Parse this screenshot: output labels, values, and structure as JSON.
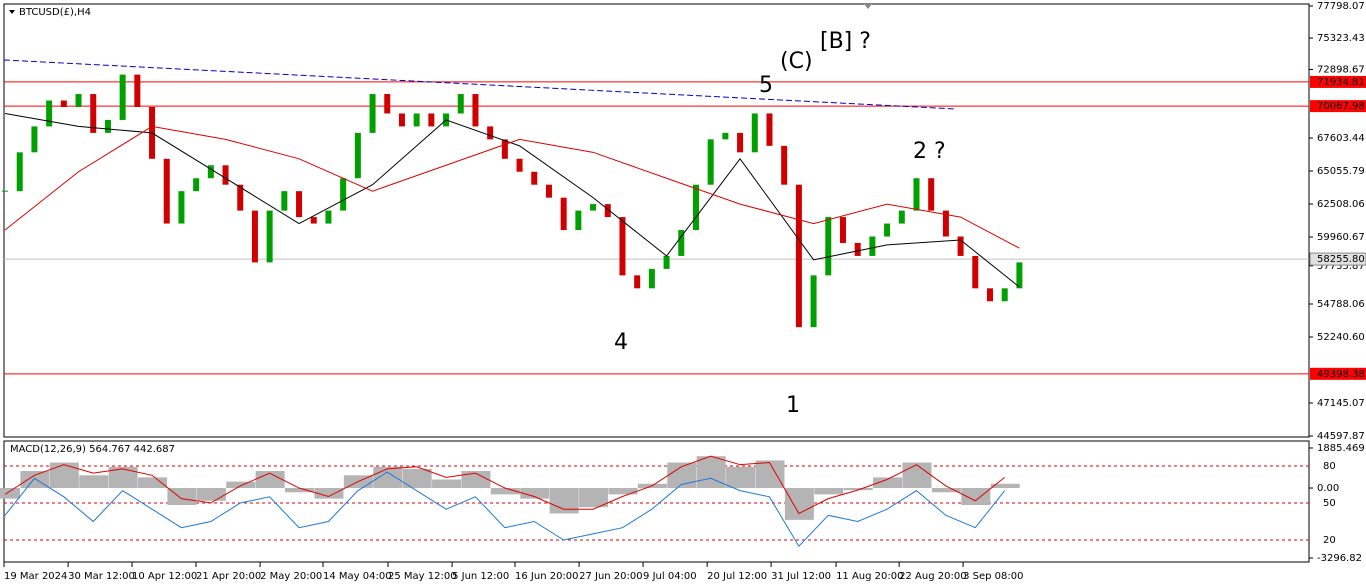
{
  "chart_data": {
    "type": "candlestick",
    "title": "BTCUSD(£),H4",
    "xlim": [
      -0.07,
      88.7
    ],
    "ylim": [
      44520,
      77952
    ],
    "up_color": "#00a000",
    "down_color": "#d00000",
    "closes": [
      63500,
      66500,
      68500,
      70500,
      70000,
      71000,
      68000,
      69000,
      72500,
      70000,
      66000,
      61000,
      63500,
      64500,
      65500,
      64000,
      62000,
      58000,
      62000,
      63500,
      61500,
      61000,
      62000,
      64500,
      68000,
      71000,
      69500,
      68500,
      69500,
      68500,
      69500,
      71000,
      68500,
      67500,
      66000,
      65000,
      64000,
      63000,
      60500,
      62000,
      62500,
      61500,
      57000,
      56000,
      57500,
      58500,
      60500,
      64000,
      67500,
      68000,
      66500,
      69500,
      67000,
      64000,
      53000,
      57000,
      61500,
      59500,
      58500,
      60000,
      61000,
      62000,
      64500,
      62000,
      60000,
      58500,
      56000,
      55000,
      56000,
      58000
    ],
    "moving_averages": [
      {
        "color": "#000000",
        "x": [
          0,
          5,
          10,
          15,
          20,
          25,
          30,
          35,
          40,
          45,
          50,
          55,
          60,
          65,
          69
        ],
        "values": [
          69500,
          68500,
          68000,
          64500,
          61000,
          64000,
          69000,
          67000,
          63000,
          58500,
          66000,
          58200,
          59350,
          59730,
          56100
        ]
      },
      {
        "color": "#e00000",
        "x": [
          0,
          5,
          10,
          15,
          20,
          25,
          30,
          35,
          40,
          45,
          50,
          55,
          60,
          65,
          69
        ],
        "values": [
          60500,
          65000,
          68500,
          67500,
          66000,
          63500,
          65500,
          67500,
          66500,
          64500,
          62500,
          61000,
          62500,
          61500,
          59100
        ]
      }
    ],
    "trendline": {
      "color": "#0000cc",
      "x": [
        -0.07,
        64.6
      ],
      "values": [
        73630,
        69850
      ]
    },
    "levels": [
      {
        "value": 71934.81,
        "color": "#ff0000"
      },
      {
        "value": 70067.98,
        "color": "#ff0000"
      },
      {
        "value": {
          "value": 58255.8,
          "label": "58255.80"
        },
        "color": "#c0c0c0"
      },
      {
        "value": 49398.38,
        "color": "#ff0000"
      }
    ],
    "yticks": [
      77798.07,
      75323.43,
      72898.67,
      67603.44,
      65055.79,
      62508.06,
      59960.67,
      57735.87,
      54788.06,
      {
        "value": 52240.6,
        "label": "52240.60"
      },
      47145.07,
      44597.87
    ],
    "xticks": [
      {
        "value": -0.07,
        "label": "19 Mar 2024"
      },
      {
        "value": 4.29,
        "label": "30 Mar 12:00"
      },
      {
        "value": 8.64,
        "label": "10 Apr 12:00"
      },
      {
        "value": 12.99,
        "label": "21 Apr 20:00"
      },
      {
        "value": 17.35,
        "label": "2 May 20:00"
      },
      {
        "value": 21.63,
        "label": "14 May 04:00"
      },
      {
        "value": 26.05,
        "label": "25 May 12:00"
      },
      {
        "value": 30.41,
        "label": "5 Jun 12:00"
      },
      {
        "value": 34.69,
        "label": "16 Jun 20:00"
      },
      {
        "value": 39.05,
        "label": "27 Jun 20:00"
      },
      {
        "value": 43.4,
        "label": "9 Jul 04:00"
      },
      {
        "value": 47.76,
        "label": "20 Jul 12:00"
      },
      {
        "value": 52.11,
        "label": "31 Jul 12:00"
      },
      {
        "value": 56.53,
        "label": "11 Aug 20:00"
      },
      {
        "value": 60.82,
        "label": "22 Aug 20:00"
      },
      {
        "value": 65.17,
        "label": "3 Sep 08:00"
      }
    ],
    "annotations": [
      {
        "text": "[B] ?",
        "color": "#000000"
      },
      {
        "text": "(C)",
        "color": "#e00000"
      },
      {
        "text": "5",
        "color": "#0000cc"
      },
      {
        "text": "2 ?",
        "color": "#0000cc"
      },
      {
        "text": "4",
        "color": "#0000cc"
      },
      {
        "text": "1",
        "color": "#0000cc"
      }
    ],
    "indicator": {
      "title": "MACD(12,26,9) 564.767 442.687",
      "ylim": [
        -3485,
        2168
      ],
      "y2lim": [
        2.2,
        99.4
      ],
      "yticks": [
        1885.469,
        {
          "value": 0,
          "label": "0.00"
        },
        -3296.82
      ],
      "y2ticks": [
        80,
        50,
        20
      ],
      "level_color": "#e00000",
      "x": [
        0,
        2,
        4,
        6,
        8,
        10,
        12,
        14,
        16,
        18,
        20,
        22,
        24,
        26,
        28,
        30,
        32,
        34,
        36,
        38,
        40,
        42,
        44,
        46,
        48,
        50,
        52,
        54,
        56,
        58,
        60,
        62,
        64,
        66,
        68
      ],
      "series": [
        {
          "color": "#b4b4b4",
          "values": [
            -500,
            800,
            1200,
            600,
            1000,
            500,
            -800,
            -600,
            300,
            800,
            -200,
            -500,
            600,
            1000,
            900,
            400,
            800,
            -300,
            -500,
            -1200,
            -900,
            -300,
            200,
            1200,
            1500,
            1000,
            1300,
            -1500,
            -300,
            -100,
            500,
            1200,
            -200,
            -800,
            200
          ]
        },
        {
          "color": "#e00000",
          "values": [
            -300,
            600,
            1100,
            700,
            900,
            600,
            -500,
            -700,
            100,
            700,
            0,
            -400,
            300,
            900,
            1000,
            500,
            700,
            0,
            -400,
            -1000,
            -1000,
            -400,
            100,
            1000,
            1500,
            1100,
            1200,
            -1200,
            -500,
            -100,
            400,
            1100,
            100,
            -600,
            500
          ]
        },
        {
          "color": "#1e78dc",
          "axis": "y2",
          "values": [
            40,
            70,
            55,
            35,
            60,
            45,
            30,
            35,
            50,
            55,
            30,
            35,
            60,
            75,
            60,
            45,
            55,
            30,
            35,
            20,
            25,
            30,
            45,
            65,
            70,
            60,
            55,
            15,
            40,
            35,
            45,
            60,
            40,
            30,
            60
          ]
        }
      ]
    }
  }
}
